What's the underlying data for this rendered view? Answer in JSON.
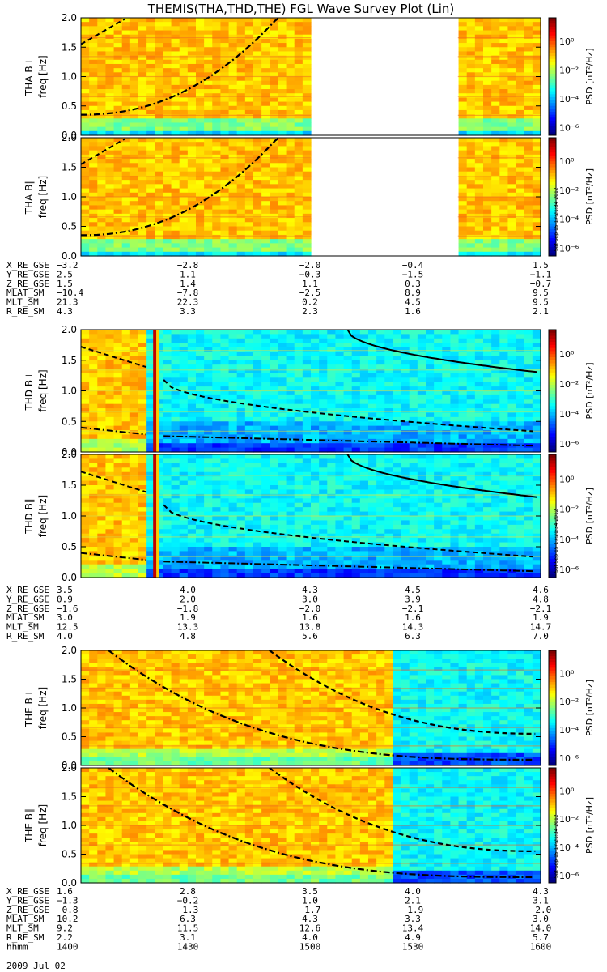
{
  "title": "THEMIS(THA,THD,THE) FGL Wave Survey Plot (Lin)",
  "date_label": "2009 Jul 02",
  "colorbar": {
    "label": "PSD [nT²/Hz]",
    "ticks": [
      "10⁰",
      "10⁻²",
      "10⁻⁴",
      "10⁻⁶"
    ],
    "stamp": "Sat Sep 15 17:21:34 2012"
  },
  "chart_data": [
    {
      "type": "heatmap",
      "panel": "THA B⊥",
      "ylabel": "THA B⊥\nfreq [Hz]",
      "ylim": [
        0,
        2.0
      ],
      "yticks": [
        "0.0",
        "0.5",
        "1.0",
        "1.5",
        "2.0"
      ],
      "data_gap": true
    },
    {
      "type": "heatmap",
      "panel": "THA B∥",
      "ylabel": "THA B∥\nfreq [Hz]",
      "ylim": [
        0,
        2.0
      ],
      "yticks": [
        "0.0",
        "0.5",
        "1.0",
        "1.5",
        "2.0"
      ],
      "data_gap": true
    },
    {
      "type": "heatmap",
      "panel": "THD B⊥",
      "ylabel": "THD B⊥\nfreq [Hz]",
      "ylim": [
        0,
        2.0
      ],
      "yticks": [
        "0.0",
        "0.5",
        "1.0",
        "1.5",
        "2.0"
      ]
    },
    {
      "type": "heatmap",
      "panel": "THD B∥",
      "ylabel": "THD B∥\nfreq [Hz]",
      "ylim": [
        0,
        2.0
      ],
      "yticks": [
        "0.0",
        "0.5",
        "1.0",
        "1.5",
        "2.0"
      ]
    },
    {
      "type": "heatmap",
      "panel": "THE B⊥",
      "ylabel": "THE B⊥\nfreq [Hz]",
      "ylim": [
        0,
        2.0
      ],
      "yticks": [
        "0.0",
        "0.5",
        "1.0",
        "1.5",
        "2.0"
      ]
    },
    {
      "type": "heatmap",
      "panel": "THE B∥",
      "ylabel": "THE B∥\nfreq [Hz]",
      "ylim": [
        0,
        2.0
      ],
      "yticks": [
        "0.0",
        "0.5",
        "1.0",
        "1.5",
        "2.0"
      ]
    }
  ],
  "ephemeris": [
    {
      "rows": [
        {
          "label": "X_RE_GSE",
          "values": [
            "−3.2",
            "−2.8",
            "−2.0",
            "−0.4",
            "1.5"
          ]
        },
        {
          "label": "Y_RE_GSE",
          "values": [
            "2.5",
            "1.1",
            "−0.3",
            "−1.5",
            "−1.1"
          ]
        },
        {
          "label": "Z_RE_GSE",
          "values": [
            "1.5",
            "1.4",
            "1.1",
            "0.3",
            "−0.7"
          ]
        },
        {
          "label": "MLAT_SM",
          "values": [
            "−10.4",
            "−7.8",
            "−2.5",
            "8.9",
            "9.5"
          ]
        },
        {
          "label": "MLT_SM",
          "values": [
            "21.3",
            "22.3",
            "0.2",
            "4.5",
            "9.5"
          ]
        },
        {
          "label": "R_RE_SM",
          "values": [
            "4.3",
            "3.3",
            "2.3",
            "1.6",
            "2.1"
          ]
        }
      ]
    },
    {
      "rows": [
        {
          "label": "X_RE_GSE",
          "values": [
            "3.5",
            "4.0",
            "4.3",
            "4.5",
            "4.6"
          ]
        },
        {
          "label": "Y_RE_GSE",
          "values": [
            "0.9",
            "2.0",
            "3.0",
            "3.9",
            "4.8"
          ]
        },
        {
          "label": "Z_RE_GSE",
          "values": [
            "−1.6",
            "−1.8",
            "−2.0",
            "−2.1",
            "−2.1"
          ]
        },
        {
          "label": "MLAT_SM",
          "values": [
            "3.0",
            "1.9",
            "1.6",
            "1.6",
            "1.9"
          ]
        },
        {
          "label": "MLT_SM",
          "values": [
            "12.5",
            "13.3",
            "13.8",
            "14.3",
            "14.7"
          ]
        },
        {
          "label": "R_RE_SM",
          "values": [
            "4.0",
            "4.8",
            "5.6",
            "6.3",
            "7.0"
          ]
        }
      ]
    },
    {
      "rows": [
        {
          "label": "X_RE_GSE",
          "values": [
            "1.6",
            "2.8",
            "3.5",
            "4.0",
            "4.3"
          ]
        },
        {
          "label": "Y_RE_GSE",
          "values": [
            "−1.3",
            "−0.2",
            "1.0",
            "2.1",
            "3.1"
          ]
        },
        {
          "label": "Z_RE_GSE",
          "values": [
            "−0.8",
            "−1.3",
            "−1.7",
            "−1.9",
            "−2.0"
          ]
        },
        {
          "label": "MLAT_SM",
          "values": [
            "10.2",
            "6.3",
            "4.3",
            "3.3",
            "3.0"
          ]
        },
        {
          "label": "MLT_SM",
          "values": [
            "9.2",
            "11.5",
            "12.6",
            "13.4",
            "14.0"
          ]
        },
        {
          "label": "R_RE_SM",
          "values": [
            "2.2",
            "3.1",
            "4.0",
            "4.9",
            "5.7"
          ]
        },
        {
          "label": "hhmm",
          "values": [
            "1400",
            "1430",
            "1500",
            "1530",
            "1600"
          ]
        }
      ]
    }
  ]
}
